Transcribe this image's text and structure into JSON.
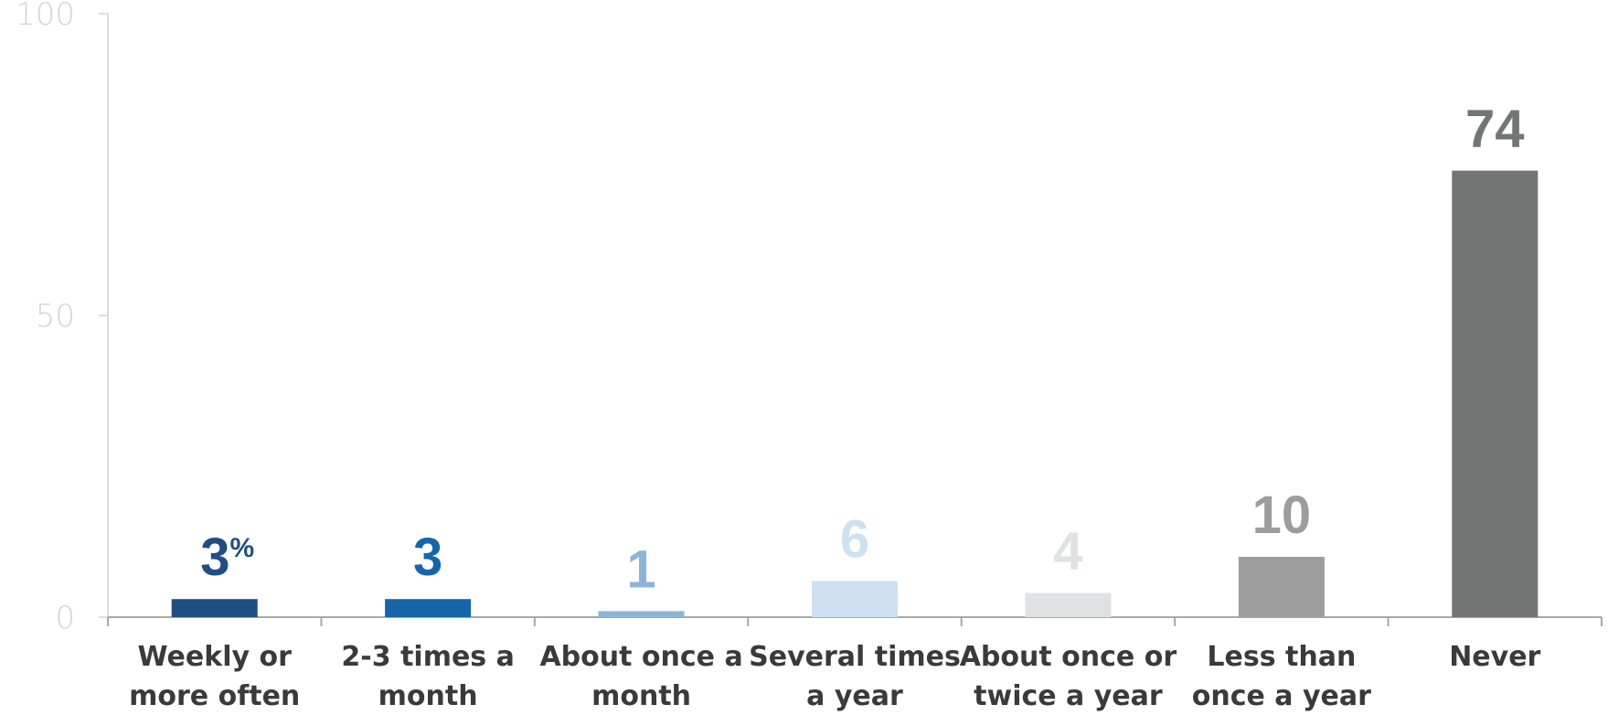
{
  "chart_data": {
    "type": "bar",
    "categories": [
      [
        "Weekly or",
        "more often"
      ],
      [
        "2-3 times a",
        "month"
      ],
      [
        "About once a",
        "month"
      ],
      [
        "Several times",
        "a year"
      ],
      [
        "About once or",
        "twice a year"
      ],
      [
        "Less than",
        "once a year"
      ],
      [
        "Never"
      ]
    ],
    "values": [
      3,
      3,
      1,
      6,
      4,
      10,
      74
    ],
    "value_labels": [
      "3",
      "3",
      "1",
      "6",
      "4",
      "10",
      "74"
    ],
    "first_value_suffix": "%",
    "bar_colors": [
      "#1f4e82",
      "#1565a8",
      "#8ab4d8",
      "#cfe0f2",
      "#dfe2e2",
      "#9d9d9d",
      "#737474"
    ],
    "label_colors": [
      "#1f4e82",
      "#1565a8",
      "#8ab4d8",
      "#cfe0f2",
      "#dfe2e2",
      "#9d9d9d",
      "#737474"
    ],
    "yticks": [
      "0",
      "50",
      "100"
    ],
    "ytick_values": [
      0,
      50,
      100
    ],
    "ylim": [
      0,
      100
    ],
    "title": "",
    "xlabel": "",
    "ylabel": "",
    "grid": false,
    "legend": "none"
  }
}
